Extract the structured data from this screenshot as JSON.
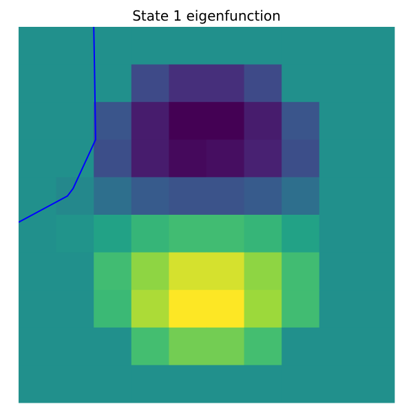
{
  "chart_data": {
    "type": "heatmap",
    "title": "State 1 eigenfunction",
    "xlabel": "",
    "ylabel": "",
    "axes_visible": false,
    "colormap": "viridis",
    "rows": 10,
    "cols": 10,
    "values": [
      [
        0.5,
        0.5,
        0.5,
        0.5,
        0.5,
        0.5,
        0.5,
        0.5,
        0.5,
        0.5
      ],
      [
        0.5,
        0.5,
        0.5,
        0.28,
        0.17,
        0.17,
        0.28,
        0.5,
        0.5,
        0.5
      ],
      [
        0.5,
        0.5,
        0.33,
        0.1,
        0.0,
        0.0,
        0.1,
        0.33,
        0.5,
        0.5
      ],
      [
        0.5,
        0.5,
        0.3,
        0.1,
        0.03,
        0.05,
        0.12,
        0.3,
        0.5,
        0.5
      ],
      [
        0.5,
        0.48,
        0.42,
        0.36,
        0.32,
        0.32,
        0.36,
        0.42,
        0.5,
        0.5
      ],
      [
        0.5,
        0.52,
        0.6,
        0.7,
        0.74,
        0.74,
        0.7,
        0.6,
        0.5,
        0.5
      ],
      [
        0.5,
        0.5,
        0.74,
        0.86,
        0.95,
        0.95,
        0.86,
        0.74,
        0.5,
        0.5
      ],
      [
        0.5,
        0.5,
        0.72,
        0.9,
        1.0,
        1.0,
        0.88,
        0.74,
        0.5,
        0.5
      ],
      [
        0.5,
        0.5,
        0.5,
        0.75,
        0.82,
        0.82,
        0.75,
        0.5,
        0.5,
        0.5
      ],
      [
        0.5,
        0.5,
        0.5,
        0.5,
        0.5,
        0.5,
        0.5,
        0.5,
        0.5,
        0.5
      ]
    ],
    "overlay_line": {
      "color": "#0000ff",
      "points": [
        [
          1.5,
          -0.5
        ],
        [
          1.52,
          0.6
        ],
        [
          1.55,
          2.5
        ],
        [
          0.95,
          3.8
        ],
        [
          0.8,
          4.0
        ],
        [
          -0.5,
          4.7
        ]
      ]
    }
  }
}
